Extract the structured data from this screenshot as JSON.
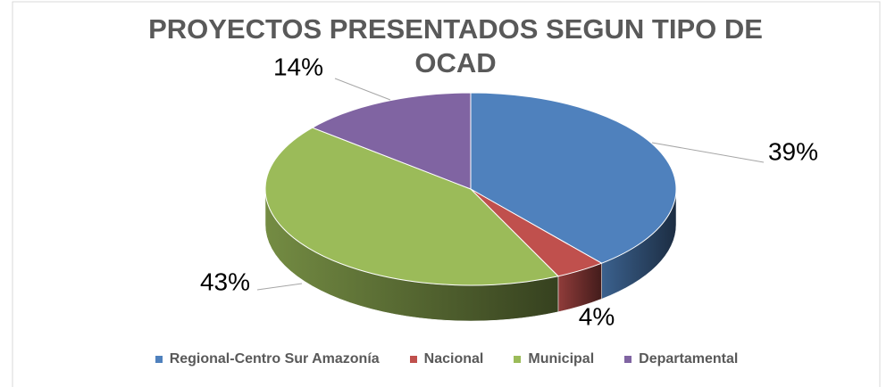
{
  "chart_data": {
    "type": "pie3d",
    "title": "PROYECTOS PRESENTADOS SEGUN TIPO DE OCAD",
    "categories": [
      "Regional-Centro Sur Amazonía",
      "Nacional",
      "Municipal",
      "Departamental"
    ],
    "values": [
      39,
      4,
      43,
      14
    ],
    "value_labels": [
      "39%",
      "4%",
      "43%",
      "14%"
    ],
    "colors": [
      "#4f81bd",
      "#c0504d",
      "#9bbb59",
      "#8064a2"
    ],
    "legend": "bottom"
  }
}
